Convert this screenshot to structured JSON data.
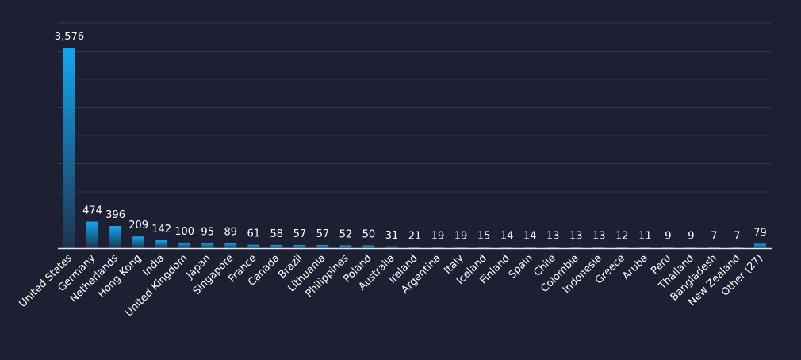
{
  "chart_data": {
    "type": "bar",
    "title": "",
    "xlabel": "",
    "ylabel": "",
    "ylim": [
      0,
      4000
    ],
    "grid": true,
    "legend": "none",
    "categories": [
      "United States",
      "Germany",
      "Netherlands",
      "Hong Kong",
      "India",
      "United Kingdom",
      "Japan",
      "Singapore",
      "France",
      "Canada",
      "Brazil",
      "Lithuania",
      "Philippines",
      "Poland",
      "Australia",
      "Ireland",
      "Argentina",
      "Italy",
      "Iceland",
      "Finland",
      "Spain",
      "Chile",
      "Colombia",
      "Indonesia",
      "Greece",
      "Aruba",
      "Peru",
      "Thailand",
      "Bangladesh",
      "New Zealand",
      "Other (27)"
    ],
    "values": [
      3576,
      474,
      396,
      209,
      142,
      100,
      95,
      89,
      61,
      58,
      57,
      57,
      52,
      50,
      31,
      21,
      19,
      19,
      15,
      14,
      14,
      13,
      13,
      13,
      12,
      11,
      9,
      9,
      7,
      7,
      79
    ],
    "value_labels": [
      "3,576",
      "474",
      "396",
      "209",
      "142",
      "100",
      "95",
      "89",
      "61",
      "58",
      "57",
      "57",
      "52",
      "50",
      "31",
      "21",
      "19",
      "19",
      "15",
      "14",
      "14",
      "13",
      "13",
      "13",
      "12",
      "11",
      "9",
      "9",
      "7",
      "7",
      "79"
    ],
    "colors": {
      "background": "#1d1f33",
      "grid": "#34374d",
      "axis": "#e6e6ee",
      "text": "#ffffff",
      "bar_top": "#12a6ef",
      "bar_bottom": "#1e3550"
    }
  }
}
